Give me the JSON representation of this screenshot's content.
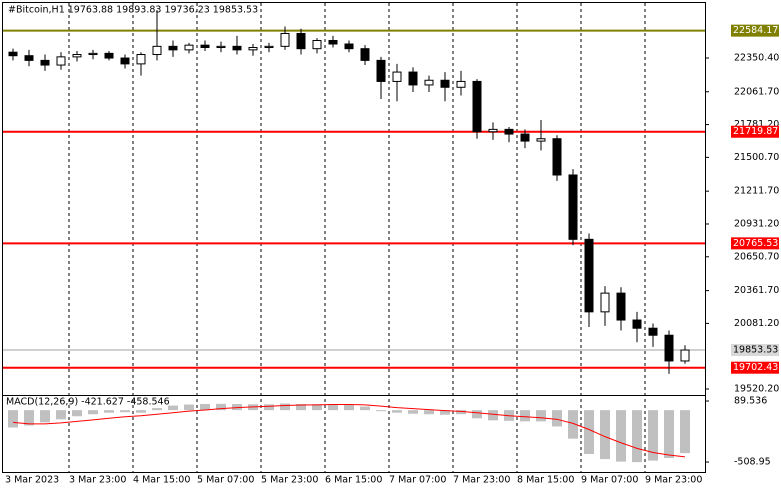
{
  "chart_data": {
    "type": "candlestick",
    "title": "#Bitcoin,H1  19763.88 19893.83 19736.23 19853.53",
    "categories": [
      "3 Mar 2023",
      null,
      null,
      null,
      "3 Mar 23:00",
      null,
      null,
      null,
      "4 Mar 15:00",
      null,
      null,
      null,
      "5 Mar 07:00",
      null,
      null,
      null,
      "5 Mar 23:00",
      null,
      null,
      null,
      "6 Mar 15:00",
      null,
      null,
      null,
      "7 Mar 07:00",
      null,
      null,
      null,
      "7 Mar 23:00",
      null,
      null,
      null,
      "8 Mar 15:00",
      null,
      null,
      null,
      "9 Mar 07:00",
      null,
      null,
      null,
      "9 Mar 23:00",
      null,
      null
    ],
    "open": [
      22400,
      22370,
      22330,
      22290,
      22360,
      22380,
      22390,
      22350,
      22300,
      22380,
      22450,
      22420,
      22460,
      22440,
      22450,
      22420,
      22440,
      22450,
      22560,
      22430,
      22500,
      22470,
      22430,
      22330,
      22150,
      22230,
      22120,
      22160,
      22100,
      22150,
      21720,
      21740,
      21700,
      21640,
      21660,
      21350,
      20800,
      20180,
      20340,
      20110,
      20040,
      19980,
      19760
    ],
    "high": [
      22430,
      22420,
      22380,
      22400,
      22410,
      22420,
      22410,
      22380,
      22400,
      22760,
      22500,
      22480,
      22500,
      22490,
      22540,
      22470,
      22480,
      22620,
      22600,
      22520,
      22540,
      22500,
      22460,
      22360,
      22300,
      22270,
      22200,
      22230,
      22240,
      22170,
      21800,
      21760,
      21740,
      21820,
      21690,
      21400,
      20850,
      20400,
      20390,
      20180,
      20080,
      20020,
      19893.83
    ],
    "low": [
      22330,
      22280,
      22240,
      22250,
      22320,
      22340,
      22330,
      22260,
      22200,
      22330,
      22360,
      22390,
      22410,
      22400,
      22380,
      22370,
      22400,
      22420,
      22380,
      22390,
      22440,
      22400,
      22290,
      22000,
      21980,
      22060,
      22060,
      21980,
      22030,
      21660,
      21650,
      21630,
      21580,
      21560,
      21300,
      20750,
      20050,
      20060,
      20020,
      19920,
      19880,
      19650,
      19736.23
    ],
    "close": [
      22370,
      22330,
      22290,
      22360,
      22380,
      22390,
      22350,
      22300,
      22380,
      22450,
      22420,
      22460,
      22440,
      22450,
      22420,
      22440,
      22450,
      22560,
      22430,
      22500,
      22470,
      22430,
      22330,
      22150,
      22230,
      22120,
      22160,
      22100,
      22150,
      21720,
      21740,
      21700,
      21640,
      21660,
      21350,
      20800,
      20180,
      20340,
      20110,
      20040,
      19980,
      19760,
      19853.53
    ],
    "ylim": [
      19469,
      22812
    ],
    "yticks": [
      {
        "value": 22350.4,
        "label": "22350.40"
      },
      {
        "value": 22061.7,
        "label": "22061.70"
      },
      {
        "value": 21781.2,
        "label": "21781.20"
      },
      {
        "value": 21500.7,
        "label": "21500.70"
      },
      {
        "value": 21211.7,
        "label": "21211.70"
      },
      {
        "value": 20931.2,
        "label": "20931.20"
      },
      {
        "value": 20650.7,
        "label": "20650.70"
      },
      {
        "value": 20361.7,
        "label": "20361.70"
      },
      {
        "value": 20081.2,
        "label": "20081.20"
      },
      {
        "value": 19520.2,
        "label": "19520.20"
      }
    ],
    "levels": [
      {
        "value": 22584.17,
        "color": "#808000"
      },
      {
        "value": 21719.87,
        "color": "#ff0000"
      },
      {
        "value": 20765.53,
        "color": "#ff0000"
      },
      {
        "value": 19702.43,
        "color": "#ff0000"
      }
    ],
    "last_price": 19853.53,
    "macd": {
      "label": "MACD(12,26,9) -421.627 -458.546",
      "histogram": [
        -170,
        -150,
        -120,
        -90,
        -60,
        -40,
        -25,
        -20,
        -25,
        20,
        45,
        55,
        60,
        62,
        60,
        58,
        57,
        65,
        60,
        58,
        60,
        55,
        35,
        -10,
        -25,
        -35,
        -40,
        -45,
        -40,
        -80,
        -100,
        -105,
        -110,
        -110,
        -160,
        -280,
        -430,
        -480,
        -505,
        -510,
        -495,
        -470,
        -421.627
      ],
      "signal": [
        -120,
        -135,
        -135,
        -125,
        -110,
        -95,
        -80,
        -65,
        -55,
        -40,
        -25,
        -10,
        2,
        15,
        25,
        32,
        38,
        45,
        50,
        52,
        55,
        55,
        52,
        40,
        25,
        15,
        5,
        -5,
        -12,
        -25,
        -40,
        -55,
        -65,
        -75,
        -90,
        -130,
        -190,
        -260,
        -320,
        -375,
        -415,
        -440,
        -458.546
      ],
      "ylim": [
        -597,
        129
      ],
      "yticks": [
        89.536,
        -508.95
      ],
      "hist_color": "#c0c0c0",
      "signal_color": "#ff0000"
    }
  }
}
